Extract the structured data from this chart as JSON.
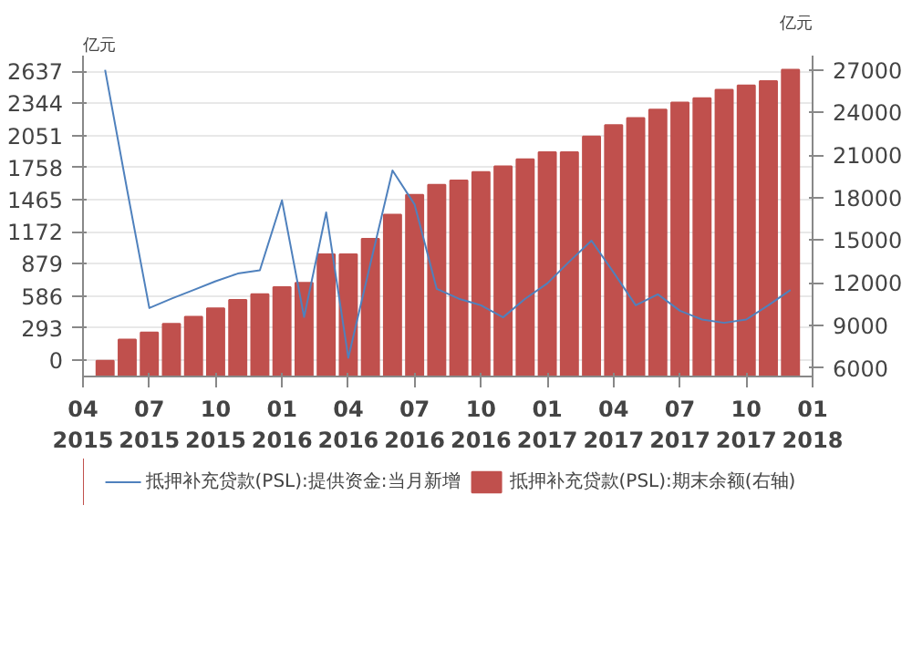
{
  "chart_data": {
    "type": "line",
    "x": [
      "2015-05",
      "2015-06",
      "2015-07",
      "2015-08",
      "2015-09",
      "2015-10",
      "2015-11",
      "2015-12",
      "2016-01",
      "2016-02",
      "2016-03",
      "2016-04",
      "2016-05",
      "2016-06",
      "2016-07",
      "2016-08",
      "2016-09",
      "2016-10",
      "2016-11",
      "2016-12",
      "2017-01",
      "2017-02",
      "2017-03",
      "2017-04",
      "2017-05",
      "2017-06",
      "2017-07",
      "2017-08",
      "2017-09",
      "2017-10",
      "2017-11",
      "2017-12"
    ],
    "series": [
      {
        "name": "抵押补充贷款(PSL):提供资金:当月新增",
        "color": "#4f81bd",
        "values": [
          2650,
          1550,
          475,
          560,
          640,
          720,
          790,
          820,
          1458,
          393,
          1348,
          21,
          880,
          1731,
          1420,
          650,
          560,
          500,
          390,
          560,
          700,
          900,
          1090,
          800,
          500,
          600,
          450,
          370,
          340,
          370,
          500,
          640
        ]
      },
      {
        "name": "抵押补充贷款(PSL):期末余额(右轴)",
        "type": "bar",
        "axis": "y2",
        "color": "#c0504d",
        "values": [
          6500,
          8000,
          8500,
          9100,
          9600,
          10200,
          10800,
          11200,
          11700,
          12000,
          14000,
          14000,
          15100,
          16800,
          18200,
          18900,
          19200,
          19800,
          20200,
          20700,
          21200,
          21200,
          22300,
          23100,
          23600,
          24200,
          24700,
          25000,
          25600,
          25900,
          26200,
          27000
        ]
      }
    ],
    "xlim": [
      "2015-04",
      "2018-01"
    ],
    "xticks": [
      {
        "value": "2015-04",
        "label": "04\n2015"
      },
      {
        "value": "2015-07",
        "label": "07\n2015"
      },
      {
        "value": "2015-10",
        "label": "10\n2015"
      },
      {
        "value": "2016-01",
        "label": "01\n2016"
      },
      {
        "value": "2016-04",
        "label": "04\n2016"
      },
      {
        "value": "2016-07",
        "label": "07\n2016"
      },
      {
        "value": "2016-10",
        "label": "10\n2016"
      },
      {
        "value": "2017-01",
        "label": "01\n2017"
      },
      {
        "value": "2017-04",
        "label": "04\n2017"
      },
      {
        "value": "2017-07",
        "label": "07\n2017"
      },
      {
        "value": "2017-10",
        "label": "10\n2017"
      },
      {
        "value": "2018-01",
        "label": "01\n2018"
      }
    ],
    "ylim": [
      -150,
      2780
    ],
    "yticks": [
      0,
      293,
      586,
      879,
      1172,
      1465,
      1758,
      2051,
      2344,
      2637
    ],
    "y2lim": [
      5400,
      28000
    ],
    "y2ticks": [
      6000,
      9000,
      12000,
      15000,
      18000,
      21000,
      24000,
      27000
    ],
    "annotations": [
      "亿元",
      "亿元"
    ],
    "grid": "y",
    "legend": "bottom"
  }
}
